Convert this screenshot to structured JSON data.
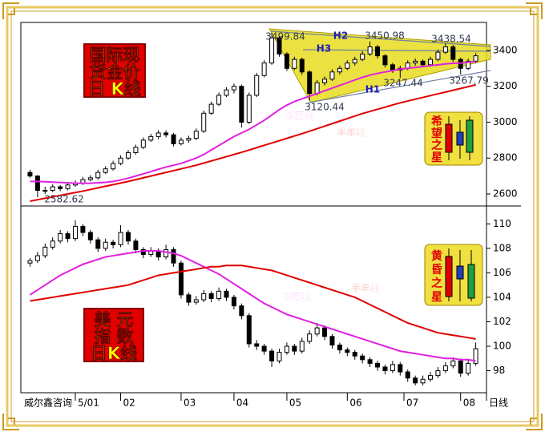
{
  "chart_data": [
    {
      "type": "candlestick",
      "title_lines": [
        "国际现",
        "货金价",
        "日 K线"
      ],
      "badge_lines": [
        "希",
        "望",
        "之",
        "星"
      ],
      "xlim": [
        -1,
        60
      ],
      "ylim": [
        2542,
        3547
      ],
      "yticks": [
        2600,
        2800,
        3000,
        3200,
        3400
      ],
      "annotations": [
        "3499.84",
        "H2",
        "3450.98",
        "3438.54",
        "H3",
        "3247.44",
        "3267.79",
        "H1",
        "3120.44",
        "2582.62"
      ],
      "series": [
        {
          "color": "#000000",
          "candles": [
            [
              2720,
              2735,
              2690,
              2700
            ],
            [
              2700,
              2705,
              2582,
              2620
            ],
            [
              2620,
              2640,
              2600,
              2620
            ],
            [
              2620,
              2655,
              2610,
              2640
            ],
            [
              2640,
              2650,
              2615,
              2630
            ],
            [
              2630,
              2665,
              2620,
              2650
            ],
            [
              2650,
              2675,
              2640,
              2660
            ],
            [
              2660,
              2695,
              2650,
              2680
            ],
            [
              2680,
              2705,
              2670,
              2690
            ],
            [
              2690,
              2735,
              2680,
              2720
            ],
            [
              2720,
              2755,
              2710,
              2740
            ],
            [
              2740,
              2785,
              2730,
              2770
            ],
            [
              2770,
              2815,
              2760,
              2800
            ],
            [
              2800,
              2845,
              2790,
              2830
            ],
            [
              2830,
              2875,
              2820,
              2860
            ],
            [
              2860,
              2915,
              2850,
              2900
            ],
            [
              2900,
              2935,
              2890,
              2920
            ],
            [
              2920,
              2955,
              2905,
              2940
            ],
            [
              2940,
              2955,
              2915,
              2930
            ],
            [
              2930,
              2940,
              2865,
              2880
            ],
            [
              2880,
              2915,
              2870,
              2900
            ],
            [
              2900,
              2925,
              2885,
              2910
            ],
            [
              2910,
              2965,
              2900,
              2950
            ],
            [
              2950,
              3065,
              2940,
              3050
            ],
            [
              3050,
              3115,
              3040,
              3100
            ],
            [
              3100,
              3165,
              3090,
              3150
            ],
            [
              3150,
              3195,
              3140,
              3180
            ],
            [
              3180,
              3215,
              3160,
              3200
            ],
            [
              3200,
              3210,
              2970,
              3000
            ],
            [
              3000,
              3165,
              2990,
              3150
            ],
            [
              3150,
              3275,
              3140,
              3260
            ],
            [
              3260,
              3345,
              3250,
              3330
            ],
            [
              3330,
              3499,
              3320,
              3470
            ],
            [
              3470,
              3480,
              3365,
              3380
            ],
            [
              3380,
              3390,
              3285,
              3300
            ],
            [
              3300,
              3365,
              3290,
              3350
            ],
            [
              3350,
              3360,
              3265,
              3280
            ],
            [
              3280,
              3290,
              3120,
              3160
            ],
            [
              3160,
              3235,
              3150,
              3220
            ],
            [
              3220,
              3255,
              3205,
              3240
            ],
            [
              3240,
              3295,
              3230,
              3280
            ],
            [
              3280,
              3315,
              3265,
              3300
            ],
            [
              3300,
              3345,
              3290,
              3330
            ],
            [
              3330,
              3365,
              3315,
              3350
            ],
            [
              3350,
              3395,
              3340,
              3380
            ],
            [
              3380,
              3450,
              3370,
              3420
            ],
            [
              3420,
              3430,
              3355,
              3370
            ],
            [
              3370,
              3380,
              3305,
              3320
            ],
            [
              3320,
              3330,
              3275,
              3290
            ],
            [
              3290,
              3315,
              3247,
              3300
            ],
            [
              3300,
              3345,
              3290,
              3330
            ],
            [
              3330,
              3355,
              3315,
              3340
            ],
            [
              3340,
              3350,
              3305,
              3320
            ],
            [
              3320,
              3365,
              3310,
              3350
            ],
            [
              3350,
              3405,
              3340,
              3390
            ],
            [
              3390,
              3438,
              3380,
              3420
            ],
            [
              3420,
              3430,
              3335,
              3350
            ],
            [
              3350,
              3360,
              3267,
              3300
            ],
            [
              3300,
              3355,
              3290,
              3340
            ],
            [
              3340,
              3385,
              3330,
              3370
            ]
          ]
        },
        {
          "name": "季度线",
          "color": "#e020e0",
          "values": [
            2670,
            2670,
            2668,
            2666,
            2664,
            2662,
            2660,
            2660,
            2660,
            2662,
            2665,
            2670,
            2678,
            2688,
            2700,
            2712,
            2725,
            2738,
            2750,
            2760,
            2770,
            2785,
            2800,
            2820,
            2845,
            2870,
            2895,
            2920,
            2940,
            2960,
            2985,
            3010,
            3040,
            3070,
            3095,
            3115,
            3130,
            3145,
            3160,
            3175,
            3190,
            3205,
            3220,
            3235,
            3250,
            3262,
            3272,
            3280,
            3288,
            3295,
            3300,
            3305,
            3310,
            3315,
            3320,
            3325,
            3328,
            3330,
            3334,
            3338
          ]
        },
        {
          "name": "半年线",
          "color": "#e00000",
          "values": [
            2560,
            2568,
            2576,
            2584,
            2592,
            2600,
            2608,
            2616,
            2625,
            2634,
            2643,
            2652,
            2661,
            2670,
            2680,
            2690,
            2700,
            2710,
            2720,
            2730,
            2740,
            2750,
            2760,
            2772,
            2784,
            2796,
            2808,
            2820,
            2832,
            2845,
            2858,
            2871,
            2884,
            2897,
            2910,
            2923,
            2936,
            2950,
            2964,
            2978,
            2992,
            3006,
            3020,
            3034,
            3048,
            3060,
            3072,
            3084,
            3096,
            3108,
            3118,
            3128,
            3138,
            3148,
            3158,
            3168,
            3178,
            3188,
            3198,
            3208
          ]
        }
      ]
    },
    {
      "type": "candlestick",
      "title_lines": [
        "美  元",
        "指  数",
        "日K线"
      ],
      "badge_lines": [
        "黄",
        "昏",
        "之",
        "星"
      ],
      "source": "威尔鑫咨询",
      "period_label": "日线",
      "xlim": [
        -1,
        60
      ],
      "xticks": [
        {
          "value": 6,
          "label": "5/01"
        },
        {
          "value": 12,
          "label": "02"
        },
        {
          "value": 20,
          "label": "03"
        },
        {
          "value": 27,
          "label": "04"
        },
        {
          "value": 34,
          "label": "05"
        },
        {
          "value": 42,
          "label": "06"
        },
        {
          "value": 49.5,
          "label": "07"
        },
        {
          "value": 57,
          "label": "08"
        }
      ],
      "ylim": [
        96.2,
        111.4
      ],
      "yticks": [
        98,
        100,
        102,
        104,
        106,
        108,
        110
      ],
      "series": [
        {
          "color": "#000000",
          "candles": [
            [
              106.8,
              107.2,
              106.5,
              107.0
            ],
            [
              107.0,
              107.7,
              106.8,
              107.4
            ],
            [
              107.4,
              108.4,
              107.2,
              108.1
            ],
            [
              108.1,
              108.9,
              107.9,
              108.6
            ],
            [
              108.6,
              109.5,
              108.4,
              109.2
            ],
            [
              109.2,
              109.4,
              108.5,
              108.8
            ],
            [
              108.8,
              110.3,
              108.6,
              109.8
            ],
            [
              109.8,
              110.0,
              109.0,
              109.3
            ],
            [
              109.3,
              109.5,
              108.4,
              108.7
            ],
            [
              108.7,
              108.9,
              107.7,
              108.0
            ],
            [
              108.0,
              108.8,
              107.8,
              108.5
            ],
            [
              108.5,
              108.7,
              108.0,
              108.3
            ],
            [
              108.3,
              109.9,
              108.1,
              109.3
            ],
            [
              109.3,
              109.5,
              108.3,
              108.6
            ],
            [
              108.6,
              108.8,
              107.6,
              107.9
            ],
            [
              107.9,
              108.1,
              107.2,
              107.5
            ],
            [
              107.5,
              108.1,
              107.3,
              107.8
            ],
            [
              107.8,
              108.0,
              107.0,
              107.3
            ],
            [
              107.3,
              108.3,
              107.1,
              107.9
            ],
            [
              107.9,
              108.1,
              106.5,
              106.8
            ],
            [
              106.8,
              107.0,
              103.9,
              104.2
            ],
            [
              104.2,
              104.4,
              103.3,
              103.6
            ],
            [
              103.6,
              104.1,
              103.4,
              103.8
            ],
            [
              103.8,
              104.6,
              103.6,
              104.3
            ],
            [
              104.3,
              104.5,
              103.6,
              103.9
            ],
            [
              103.9,
              104.8,
              103.7,
              104.5
            ],
            [
              104.5,
              104.7,
              103.7,
              104.0
            ],
            [
              104.0,
              104.2,
              103.0,
              103.3
            ],
            [
              103.3,
              103.5,
              102.2,
              102.5
            ],
            [
              102.5,
              102.7,
              99.9,
              100.2
            ],
            [
              100.2,
              100.5,
              99.7,
              100.0
            ],
            [
              100.0,
              100.2,
              99.3,
              99.6
            ],
            [
              99.6,
              99.8,
              98.3,
              98.8
            ],
            [
              98.8,
              99.8,
              98.6,
              99.5
            ],
            [
              99.5,
              100.3,
              99.3,
              100.0
            ],
            [
              100.0,
              100.2,
              99.3,
              99.6
            ],
            [
              99.6,
              100.7,
              99.4,
              100.4
            ],
            [
              100.4,
              101.3,
              100.2,
              101.0
            ],
            [
              101.0,
              101.9,
              100.8,
              101.5
            ],
            [
              101.5,
              101.7,
              100.5,
              100.8
            ],
            [
              100.8,
              101.0,
              99.8,
              100.1
            ],
            [
              100.1,
              100.3,
              99.4,
              99.7
            ],
            [
              99.7,
              99.9,
              99.2,
              99.5
            ],
            [
              99.5,
              99.7,
              98.9,
              99.2
            ],
            [
              99.2,
              99.4,
              98.6,
              98.9
            ],
            [
              98.9,
              99.1,
              98.3,
              98.6
            ],
            [
              98.6,
              98.8,
              98.0,
              98.3
            ],
            [
              98.3,
              98.5,
              97.7,
              98.0
            ],
            [
              98.0,
              98.8,
              97.8,
              98.5
            ],
            [
              98.5,
              98.7,
              97.6,
              97.9
            ],
            [
              97.9,
              98.1,
              97.1,
              97.4
            ],
            [
              97.4,
              97.6,
              96.8,
              97.0
            ],
            [
              97.0,
              97.6,
              96.8,
              97.3
            ],
            [
              97.3,
              97.9,
              97.1,
              97.6
            ],
            [
              97.6,
              98.3,
              97.4,
              98.0
            ],
            [
              98.0,
              98.7,
              97.8,
              98.4
            ],
            [
              98.4,
              99.1,
              98.2,
              98.8
            ],
            [
              98.8,
              99.0,
              97.5,
              97.8
            ],
            [
              97.8,
              98.9,
              97.6,
              98.6
            ],
            [
              98.6,
              100.3,
              98.4,
              99.8
            ]
          ]
        },
        {
          "name": "季度线",
          "color": "#e020e0",
          "values": [
            104.2,
            104.6,
            105.0,
            105.4,
            105.8,
            106.1,
            106.4,
            106.7,
            106.9,
            107.1,
            107.3,
            107.4,
            107.5,
            107.6,
            107.7,
            107.8,
            107.8,
            107.8,
            107.7,
            107.6,
            107.4,
            107.1,
            106.8,
            106.5,
            106.2,
            105.9,
            105.5,
            105.1,
            104.7,
            104.3,
            103.9,
            103.5,
            103.2,
            102.9,
            102.6,
            102.4,
            102.2,
            102.0,
            101.8,
            101.6,
            101.4,
            101.2,
            101.0,
            100.8,
            100.6,
            100.4,
            100.2,
            100.0,
            99.8,
            99.6,
            99.5,
            99.4,
            99.3,
            99.2,
            99.1,
            99.0,
            99.0,
            98.9,
            98.9,
            98.8
          ]
        },
        {
          "name": "半年线",
          "color": "#e00000",
          "values": [
            103.7,
            103.8,
            103.9,
            104.0,
            104.1,
            104.2,
            104.3,
            104.4,
            104.5,
            104.6,
            104.7,
            104.8,
            104.9,
            105.0,
            105.2,
            105.4,
            105.6,
            105.8,
            105.9,
            106.0,
            106.1,
            106.2,
            106.3,
            106.4,
            106.5,
            106.5,
            106.6,
            106.6,
            106.6,
            106.5,
            106.4,
            106.3,
            106.2,
            106.0,
            105.8,
            105.6,
            105.4,
            105.2,
            105.0,
            104.8,
            104.6,
            104.4,
            104.2,
            104.0,
            103.7,
            103.4,
            103.1,
            102.8,
            102.5,
            102.2,
            101.9,
            101.7,
            101.5,
            101.3,
            101.1,
            101.0,
            100.9,
            100.8,
            100.7,
            100.6
          ]
        }
      ]
    }
  ]
}
